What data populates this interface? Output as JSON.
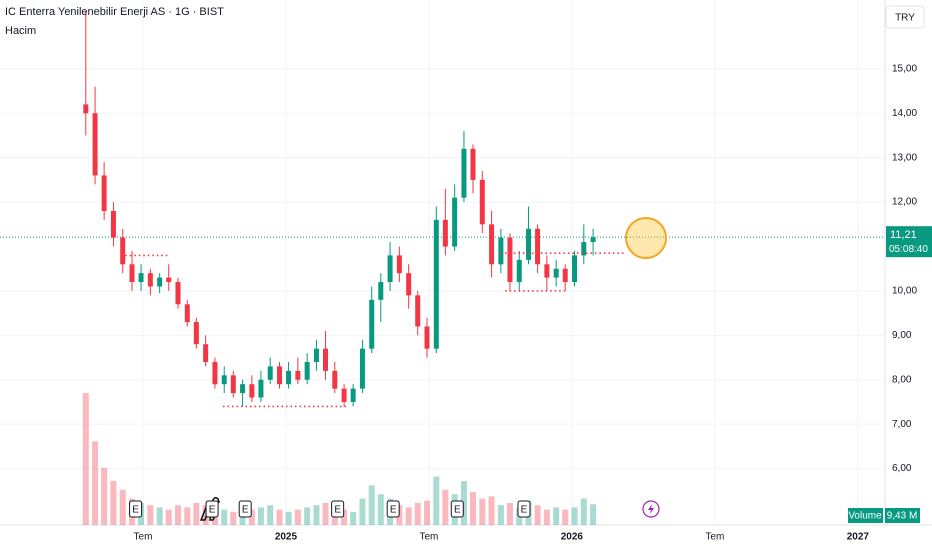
{
  "chart_data": {
    "type": "candlestick",
    "title": "IC Enterra Yenilenebilir Enerji AS · 1G · BIST",
    "indicator": "Hacim",
    "currency": "TRY",
    "x": [
      3.6,
      3.99,
      4.37,
      4.76,
      5.15,
      5.54,
      5.92,
      6.31,
      6.7,
      7.08,
      7.47,
      7.86,
      8.24,
      8.63,
      9.02,
      9.41,
      9.79,
      10.18,
      10.57,
      10.95,
      11.34,
      11.73,
      12.11,
      12.5,
      12.89,
      13.28,
      13.66,
      14.05,
      14.44,
      14.82,
      15.21,
      15.6,
      15.98,
      16.37,
      16.76,
      17.15,
      17.53,
      17.92,
      18.31,
      18.69,
      19.08,
      19.47,
      19.85,
      20.24,
      20.63,
      21.02,
      21.4,
      21.79,
      22.18,
      22.56,
      22.95,
      23.34,
      23.72,
      24.11,
      24.5,
      24.89
    ],
    "open": [
      14.2,
      14.0,
      12.6,
      11.8,
      11.2,
      10.6,
      10.2,
      10.4,
      10.1,
      10.3,
      10.2,
      9.7,
      9.3,
      8.8,
      8.4,
      7.9,
      8.1,
      7.7,
      7.9,
      7.6,
      8.0,
      8.3,
      7.9,
      8.2,
      8.0,
      8.4,
      8.7,
      8.2,
      7.8,
      7.5,
      7.8,
      8.7,
      9.8,
      10.2,
      10.8,
      10.4,
      9.9,
      9.2,
      8.7,
      11.6,
      11.0,
      12.1,
      13.2,
      12.5,
      11.5,
      10.6,
      11.2,
      10.2,
      10.7,
      11.4,
      10.6,
      10.3,
      10.5,
      10.2,
      10.8,
      11.1
    ],
    "high": [
      16.3,
      14.6,
      12.9,
      12.0,
      11.4,
      10.9,
      10.6,
      10.5,
      10.4,
      10.6,
      10.3,
      9.8,
      9.4,
      9.0,
      8.5,
      8.3,
      8.2,
      8.0,
      8.1,
      8.2,
      8.5,
      8.4,
      8.4,
      8.5,
      8.6,
      8.9,
      9.1,
      8.4,
      7.9,
      7.9,
      8.9,
      10.1,
      10.4,
      11.1,
      11.0,
      10.6,
      10.0,
      9.4,
      11.9,
      12.3,
      12.4,
      13.6,
      13.3,
      12.7,
      11.8,
      11.4,
      11.3,
      10.9,
      11.9,
      11.5,
      10.8,
      10.7,
      10.6,
      10.9,
      11.5,
      11.4
    ],
    "low": [
      13.5,
      12.4,
      11.6,
      11.0,
      10.4,
      10.0,
      10.0,
      9.9,
      9.95,
      10.0,
      9.6,
      9.2,
      8.7,
      8.3,
      7.8,
      7.7,
      7.6,
      7.4,
      7.5,
      7.5,
      7.9,
      7.8,
      7.8,
      7.9,
      7.9,
      8.2,
      8.0,
      7.7,
      7.4,
      7.4,
      7.7,
      8.6,
      9.3,
      10.0,
      10.2,
      9.6,
      9.0,
      8.5,
      8.6,
      10.8,
      10.9,
      12.0,
      12.2,
      11.3,
      10.3,
      10.4,
      10.0,
      10.0,
      10.6,
      10.4,
      10.0,
      10.1,
      10.0,
      10.1,
      10.6,
      10.8
    ],
    "close": [
      14.0,
      12.6,
      11.8,
      11.2,
      10.6,
      10.2,
      10.4,
      10.1,
      10.3,
      10.2,
      9.7,
      9.3,
      8.8,
      8.4,
      7.9,
      8.1,
      7.7,
      7.9,
      7.6,
      8.0,
      8.3,
      7.9,
      8.2,
      8.0,
      8.4,
      8.7,
      8.2,
      7.8,
      7.5,
      7.8,
      8.7,
      9.8,
      10.2,
      10.8,
      10.4,
      9.9,
      9.2,
      8.7,
      11.6,
      11.0,
      12.1,
      13.2,
      12.5,
      11.5,
      10.6,
      11.2,
      10.2,
      10.7,
      11.4,
      10.6,
      10.3,
      10.5,
      10.2,
      10.8,
      11.1,
      11.21
    ],
    "volume": [
      60,
      38,
      26,
      20,
      16,
      12,
      10,
      9,
      8,
      7,
      9,
      8,
      10,
      9,
      11,
      7,
      6,
      6,
      7,
      8,
      9,
      7,
      6,
      7,
      8,
      9,
      10,
      8,
      7,
      6,
      12,
      18,
      14,
      12,
      9,
      8,
      10,
      11,
      22,
      16,
      14,
      20,
      15,
      12,
      13,
      9,
      10,
      8,
      11,
      9,
      7,
      8,
      7,
      8,
      12,
      9.43
    ],
    "up_color": "#089981",
    "down_color": "#f23645",
    "xlim": [
      0,
      37.14
    ],
    "xticks": [
      {
        "value": 6,
        "label": "Tem"
      },
      {
        "value": 12,
        "label": "2025"
      },
      {
        "value": 18,
        "label": "Tem"
      },
      {
        "value": 24,
        "label": "2026"
      },
      {
        "value": 30,
        "label": "Tem"
      },
      {
        "value": 36,
        "label": "2027"
      }
    ],
    "ylim": [
      4.73,
      16.55
    ],
    "yticks": [
      {
        "value": 6,
        "label": "6,00"
      },
      {
        "value": 7,
        "label": "7,00"
      },
      {
        "value": 8,
        "label": "8,00"
      },
      {
        "value": 9,
        "label": "9,00"
      },
      {
        "value": 10,
        "label": "10,00"
      },
      {
        "value": 12,
        "label": "12,00"
      },
      {
        "value": 13,
        "label": "13,00"
      },
      {
        "value": 14,
        "label": "14,00"
      },
      {
        "value": 15,
        "label": "15,00"
      }
    ],
    "grid": true,
    "last_price": {
      "value": 11.21,
      "label": "11,21"
    },
    "countdown": "05:08:40",
    "volume_label": "Volume",
    "volume_last_label": "9,43 M",
    "levels": [
      {
        "value": 10.8,
        "x": [
          5.07,
          7.04
        ]
      },
      {
        "value": 7.4,
        "x": [
          9.36,
          14.64
        ]
      },
      {
        "value": 10.0,
        "x": [
          21.2,
          23.7
        ]
      },
      {
        "value": 10.85,
        "x": [
          21.0,
          26.2
        ]
      }
    ],
    "earnings_label": "E",
    "earnings_x": [
      5.69,
      8.9,
      10.29,
      14.17,
      16.5,
      19.19,
      21.99
    ]
  }
}
